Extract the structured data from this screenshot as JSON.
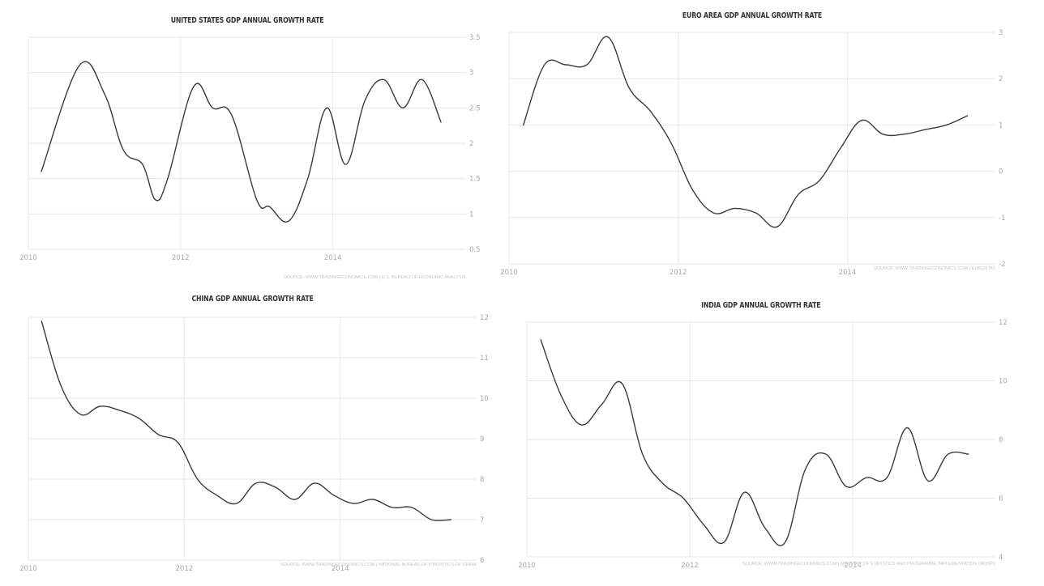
{
  "chart_data": [
    {
      "type": "line",
      "title": "UNITED STATES GDP ANNUAL GROWTH RATE",
      "source": "SOURCE: WWW.TRADINGECONOMICS.COM  |  U.S. BUREAU OF ECONOMIC ANALYSIS",
      "xlim": [
        2010,
        2015.75
      ],
      "x_ticks": [
        "2010",
        "2012",
        "2014"
      ],
      "ylim": [
        0.5,
        3.5
      ],
      "y_ticks": [
        "3.5",
        "3",
        "2.5",
        "2",
        "1.5",
        "1",
        "0.5"
      ],
      "x": [
        2010.17,
        2010.67,
        2011.0,
        2011.25,
        2011.5,
        2011.67,
        2011.83,
        2012.17,
        2012.42,
        2012.67,
        2013.0,
        2013.17,
        2013.42,
        2013.67,
        2013.92,
        2014.17,
        2014.42,
        2014.67,
        2014.92,
        2015.17,
        2015.42
      ],
      "series": [
        {
          "values": [
            1.6,
            3.1,
            2.7,
            1.9,
            1.7,
            1.2,
            1.5,
            2.8,
            2.5,
            2.4,
            1.2,
            1.1,
            0.9,
            1.5,
            2.5,
            1.7,
            2.6,
            2.9,
            2.5,
            2.9,
            2.3
          ]
        }
      ]
    },
    {
      "type": "line",
      "title": "EURO AREA GDP ANNUAL GROWTH RATE",
      "source": "SOURCE: WWW.TRADINGECONOMICS.COM  |  EUROSTAT",
      "xlim": [
        2010,
        2015.75
      ],
      "x_ticks": [
        "2010",
        "2012",
        "2014"
      ],
      "ylim": [
        -2,
        3
      ],
      "y_ticks": [
        "3",
        "2",
        "1",
        "0",
        "-1",
        "-2"
      ],
      "x": [
        2010.17,
        2010.42,
        2010.67,
        2010.92,
        2011.17,
        2011.42,
        2011.67,
        2011.92,
        2012.17,
        2012.42,
        2012.67,
        2012.92,
        2013.17,
        2013.42,
        2013.67,
        2013.92,
        2014.17,
        2014.42,
        2014.67,
        2014.92,
        2015.17,
        2015.42
      ],
      "series": [
        {
          "values": [
            1.0,
            2.3,
            2.3,
            2.3,
            2.9,
            1.8,
            1.3,
            0.6,
            -0.4,
            -0.9,
            -0.8,
            -0.9,
            -1.2,
            -0.5,
            -0.2,
            0.5,
            1.1,
            0.8,
            0.8,
            0.9,
            1.0,
            1.2
          ]
        }
      ]
    },
    {
      "type": "line",
      "title": "CHINA GDP ANNUAL GROWTH RATE",
      "source": "SOURCE: WWW.TRADINGECONOMICS.COM  |  NATIONAL BUREAU OF STATISTICS OF CHINA",
      "xlim": [
        2010,
        2015.75
      ],
      "x_ticks": [
        "2010",
        "2012",
        "2014"
      ],
      "ylim": [
        6,
        12
      ],
      "y_ticks": [
        "12",
        "11",
        "10",
        "9",
        "8",
        "7",
        "6"
      ],
      "x": [
        2010.17,
        2010.42,
        2010.67,
        2010.92,
        2011.17,
        2011.42,
        2011.67,
        2011.92,
        2012.17,
        2012.42,
        2012.67,
        2012.92,
        2013.17,
        2013.42,
        2013.67,
        2013.92,
        2014.17,
        2014.42,
        2014.67,
        2014.92,
        2015.17,
        2015.42
      ],
      "series": [
        {
          "values": [
            11.9,
            10.3,
            9.6,
            9.8,
            9.7,
            9.5,
            9.1,
            8.9,
            8.0,
            7.6,
            7.4,
            7.9,
            7.8,
            7.5,
            7.9,
            7.6,
            7.4,
            7.5,
            7.3,
            7.3,
            7.0,
            7.0
          ]
        }
      ]
    },
    {
      "type": "line",
      "title": "INDIA GDP ANNUAL GROWTH RATE",
      "source": "SOURCE: WWW.TRADINGECONOMICS.COM  |  MINISTRY OF STATISTICS AND PROGRAMME IMPLEMENTATION (MOSPI)",
      "xlim": [
        2010,
        2015.75
      ],
      "x_ticks": [
        "2010",
        "2012",
        "2014"
      ],
      "ylim": [
        4,
        12
      ],
      "y_ticks": [
        "12",
        "10",
        "8",
        "6",
        "4"
      ],
      "x": [
        2010.17,
        2010.42,
        2010.67,
        2010.92,
        2011.17,
        2011.42,
        2011.67,
        2011.92,
        2012.17,
        2012.42,
        2012.67,
        2012.92,
        2013.17,
        2013.42,
        2013.67,
        2013.92,
        2014.17,
        2014.42,
        2014.67,
        2014.92,
        2015.17,
        2015.42
      ],
      "series": [
        {
          "values": [
            11.4,
            9.5,
            8.5,
            9.2,
            9.9,
            7.5,
            6.5,
            6.0,
            5.1,
            4.5,
            6.2,
            5.0,
            4.5,
            7.0,
            7.5,
            6.4,
            6.7,
            6.7,
            8.4,
            6.6,
            7.5,
            7.5
          ]
        }
      ]
    }
  ]
}
